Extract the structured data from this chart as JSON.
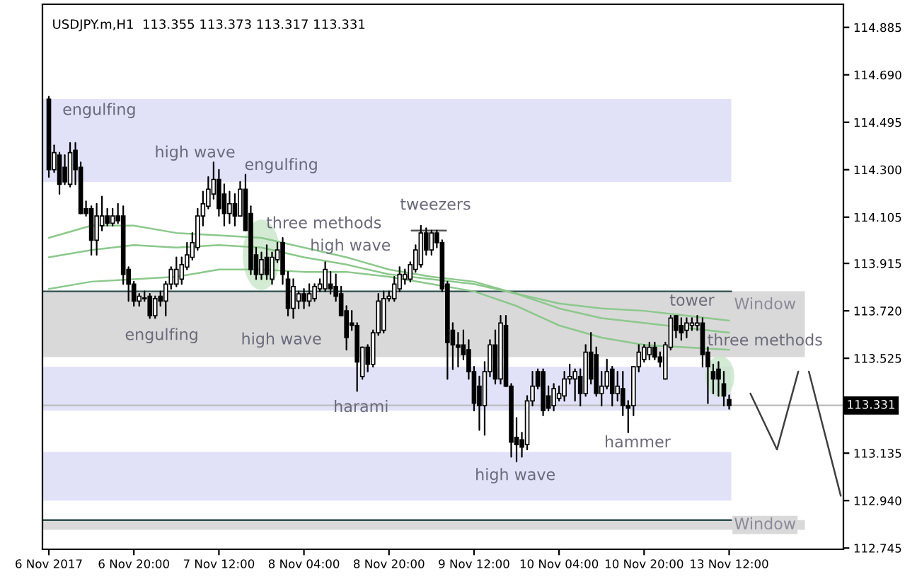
{
  "chart_data": {
    "type": "candlestick",
    "title": "USDJPY.m,H1  113.355 113.373 113.317 113.331",
    "categories": [
      "6 Nov 2017",
      null,
      null,
      null,
      null,
      null,
      null,
      null,
      null,
      null,
      null,
      null,
      null,
      null,
      null,
      null,
      "6 Nov 20:00",
      null,
      null,
      null,
      null,
      null,
      null,
      null,
      null,
      null,
      null,
      null,
      null,
      null,
      null,
      null,
      "7 Nov 12:00",
      null,
      null,
      null,
      null,
      null,
      null,
      null,
      null,
      null,
      null,
      null,
      null,
      null,
      null,
      null,
      "8 Nov 04:00",
      null,
      null,
      null,
      null,
      null,
      null,
      null,
      null,
      null,
      null,
      null,
      null,
      null,
      null,
      null,
      "8 Nov 20:00",
      null,
      null,
      null,
      null,
      null,
      null,
      null,
      null,
      null,
      null,
      null,
      null,
      null,
      null,
      null,
      "9 Nov 12:00",
      null,
      null,
      null,
      null,
      null,
      null,
      null,
      null,
      null,
      null,
      null,
      null,
      null,
      null,
      null,
      "10 Nov 04:00",
      null,
      null,
      null,
      null,
      null,
      null,
      null,
      null,
      null,
      null,
      null,
      null,
      null,
      null,
      null,
      "10 Nov 20:00",
      null,
      null,
      null,
      null,
      null,
      null,
      null,
      null,
      null,
      null,
      null,
      null,
      null,
      null,
      null,
      "13 Nov 12:00",
      null,
      null,
      null,
      null,
      null,
      null,
      null,
      null,
      null,
      null,
      null,
      null,
      null,
      null,
      null,
      null,
      null,
      null,
      null,
      null,
      null
    ],
    "color": "#000000",
    "ohlc": [
      [
        114.59,
        114.6,
        114.27,
        114.3
      ],
      [
        114.3,
        114.4,
        114.29,
        114.37
      ],
      [
        114.36,
        114.37,
        114.2,
        114.24
      ],
      [
        114.31,
        114.36,
        114.24,
        114.25
      ],
      [
        114.24,
        114.41,
        114.23,
        114.37
      ],
      [
        114.38,
        114.41,
        114.24,
        114.3
      ],
      [
        114.31,
        114.33,
        114.12,
        114.12
      ],
      [
        114.14,
        114.17,
        114.11,
        114.12
      ],
      [
        114.14,
        114.15,
        113.95,
        114.01
      ],
      [
        114.01,
        114.16,
        113.95,
        114.11
      ],
      [
        114.07,
        114.19,
        114.05,
        114.11
      ],
      [
        114.11,
        114.14,
        114.07,
        114.08
      ],
      [
        114.08,
        114.14,
        114.07,
        114.11
      ],
      [
        114.11,
        114.16,
        114.08,
        114.09
      ],
      [
        114.11,
        114.15,
        113.83,
        113.87
      ],
      [
        113.89,
        113.9,
        113.76,
        113.83
      ],
      [
        113.83,
        113.84,
        113.74,
        113.76
      ],
      [
        113.76,
        113.79,
        113.74,
        113.78
      ],
      [
        113.77,
        113.8,
        113.76,
        113.77
      ],
      [
        113.78,
        113.79,
        113.69,
        113.7
      ],
      [
        113.7,
        113.78,
        113.69,
        113.77
      ],
      [
        113.78,
        113.8,
        113.74,
        113.76
      ],
      [
        113.76,
        113.84,
        113.7,
        113.83
      ],
      [
        113.83,
        113.9,
        113.81,
        113.89
      ],
      [
        113.83,
        113.94,
        113.82,
        113.89
      ],
      [
        113.85,
        113.94,
        113.83,
        113.91
      ],
      [
        113.9,
        114.0,
        113.89,
        113.95
      ],
      [
        113.94,
        114.04,
        113.93,
        114.0
      ],
      [
        113.98,
        114.14,
        113.97,
        114.11
      ],
      [
        114.11,
        114.21,
        114.07,
        114.16
      ],
      [
        114.15,
        114.27,
        114.14,
        114.22
      ],
      [
        114.2,
        114.33,
        114.18,
        114.26
      ],
      [
        114.26,
        114.3,
        114.11,
        114.14
      ],
      [
        114.2,
        114.24,
        114.07,
        114.12
      ],
      [
        114.12,
        114.21,
        114.08,
        114.16
      ],
      [
        114.16,
        114.2,
        114.07,
        114.11
      ],
      [
        114.11,
        114.25,
        114.11,
        114.22
      ],
      [
        114.22,
        114.28,
        114.05,
        114.05
      ],
      [
        114.12,
        114.15,
        113.87,
        113.89
      ],
      [
        113.95,
        113.98,
        113.85,
        113.87
      ],
      [
        113.87,
        113.96,
        113.85,
        113.93
      ],
      [
        113.94,
        113.99,
        113.85,
        113.87
      ],
      [
        113.85,
        113.96,
        113.83,
        113.94
      ],
      [
        113.93,
        114.0,
        113.92,
        113.97
      ],
      [
        114.0,
        114.02,
        113.83,
        113.87
      ],
      [
        113.85,
        113.88,
        113.7,
        113.73
      ],
      [
        113.73,
        113.85,
        113.69,
        113.82
      ],
      [
        113.76,
        113.8,
        113.73,
        113.79
      ],
      [
        113.79,
        113.81,
        113.73,
        113.76
      ],
      [
        113.76,
        113.83,
        113.74,
        113.79
      ],
      [
        113.77,
        113.83,
        113.76,
        113.82
      ],
      [
        113.81,
        113.85,
        113.8,
        113.83
      ],
      [
        113.81,
        113.92,
        113.8,
        113.89
      ],
      [
        113.83,
        113.88,
        113.79,
        113.81
      ],
      [
        113.82,
        113.87,
        113.76,
        113.78
      ],
      [
        113.79,
        113.82,
        113.7,
        113.7
      ],
      [
        113.72,
        113.74,
        113.56,
        113.61
      ],
      [
        113.67,
        113.72,
        113.64,
        113.66
      ],
      [
        113.66,
        113.67,
        113.39,
        113.51
      ],
      [
        113.45,
        113.57,
        113.44,
        113.57
      ],
      [
        113.57,
        113.58,
        113.47,
        113.5
      ],
      [
        113.5,
        113.64,
        113.49,
        113.63
      ],
      [
        113.63,
        113.79,
        113.62,
        113.76
      ],
      [
        113.64,
        113.8,
        113.63,
        113.77
      ],
      [
        113.77,
        113.8,
        113.76,
        113.78
      ],
      [
        113.77,
        113.86,
        113.76,
        113.83
      ],
      [
        113.81,
        113.9,
        113.8,
        113.87
      ],
      [
        113.85,
        113.89,
        113.83,
        113.87
      ],
      [
        113.85,
        113.92,
        113.84,
        113.91
      ],
      [
        113.89,
        113.99,
        113.88,
        113.97
      ],
      [
        113.91,
        114.07,
        113.9,
        114.04
      ],
      [
        114.04,
        114.06,
        113.95,
        113.97
      ],
      [
        113.97,
        114.05,
        113.95,
        114.04
      ],
      [
        114.04,
        114.05,
        113.98,
        114.0
      ],
      [
        114.0,
        114.01,
        113.8,
        113.81
      ],
      [
        113.83,
        113.84,
        113.44,
        113.59
      ],
      [
        113.64,
        113.67,
        113.48,
        113.58
      ],
      [
        113.58,
        113.63,
        113.49,
        113.57
      ],
      [
        113.58,
        113.64,
        113.52,
        113.54
      ],
      [
        113.56,
        113.6,
        113.44,
        113.47
      ],
      [
        113.47,
        113.49,
        113.31,
        113.34
      ],
      [
        113.41,
        113.45,
        113.23,
        113.33
      ],
      [
        113.33,
        113.51,
        113.21,
        113.47
      ],
      [
        113.47,
        113.6,
        113.45,
        113.58
      ],
      [
        113.58,
        113.64,
        113.42,
        113.44
      ],
      [
        113.44,
        113.7,
        113.42,
        113.67
      ],
      [
        113.66,
        113.7,
        113.41,
        113.41
      ],
      [
        113.41,
        113.42,
        113.12,
        113.18
      ],
      [
        113.2,
        113.28,
        113.1,
        113.17
      ],
      [
        113.19,
        113.22,
        113.12,
        113.16
      ],
      [
        113.17,
        113.37,
        113.15,
        113.35
      ],
      [
        113.35,
        113.47,
        113.33,
        113.41
      ],
      [
        113.47,
        113.48,
        113.4,
        113.41
      ],
      [
        113.47,
        113.48,
        113.29,
        113.31
      ],
      [
        113.37,
        113.41,
        113.31,
        113.32
      ],
      [
        113.33,
        113.42,
        113.31,
        113.4
      ],
      [
        113.36,
        113.41,
        113.35,
        113.38
      ],
      [
        113.37,
        113.47,
        113.35,
        113.44
      ],
      [
        113.44,
        113.5,
        113.42,
        113.45
      ],
      [
        113.44,
        113.48,
        113.35,
        113.47
      ],
      [
        113.45,
        113.48,
        113.33,
        113.38
      ],
      [
        113.38,
        113.58,
        113.37,
        113.55
      ],
      [
        113.55,
        113.63,
        113.42,
        113.44
      ],
      [
        113.54,
        113.57,
        113.37,
        113.38
      ],
      [
        113.38,
        113.47,
        113.33,
        113.41
      ],
      [
        113.41,
        113.52,
        113.4,
        113.47
      ],
      [
        113.48,
        113.49,
        113.33,
        113.38
      ],
      [
        113.38,
        113.47,
        113.35,
        113.41
      ],
      [
        113.4,
        113.47,
        113.29,
        113.33
      ],
      [
        113.33,
        113.35,
        113.22,
        113.32
      ],
      [
        113.33,
        113.49,
        113.29,
        113.49
      ],
      [
        113.49,
        113.58,
        113.47,
        113.55
      ],
      [
        113.52,
        113.58,
        113.51,
        113.57
      ],
      [
        113.54,
        113.59,
        113.52,
        113.57
      ],
      [
        113.57,
        113.59,
        113.52,
        113.53
      ],
      [
        113.53,
        113.55,
        113.49,
        113.51
      ],
      [
        113.44,
        113.59,
        113.44,
        113.58
      ],
      [
        113.57,
        113.7,
        113.56,
        113.69
      ],
      [
        113.7,
        113.7,
        113.61,
        113.64
      ],
      [
        113.66,
        113.69,
        113.6,
        113.63
      ],
      [
        113.64,
        113.69,
        113.61,
        113.67
      ],
      [
        113.66,
        113.69,
        113.64,
        113.67
      ],
      [
        113.66,
        113.7,
        113.64,
        113.67
      ],
      [
        113.67,
        113.69,
        113.49,
        113.54
      ],
      [
        113.55,
        113.57,
        113.34,
        113.49
      ],
      [
        113.47,
        113.5,
        113.38,
        113.44
      ],
      [
        113.48,
        113.51,
        113.37,
        113.44
      ],
      [
        113.42,
        113.47,
        113.33,
        113.37
      ],
      [
        113.355,
        113.373,
        113.317,
        113.331
      ],
      null,
      null,
      null,
      null,
      null,
      null,
      null,
      null,
      null,
      null,
      null,
      null,
      null,
      null,
      null,
      null,
      null,
      null,
      null,
      null,
      null
    ],
    "series": [
      {
        "type": "line",
        "color": "#8cc88c",
        "values": [
          114.02,
          null,
          null,
          null,
          null,
          null,
          null,
          null,
          114.07,
          null,
          null,
          null,
          null,
          null,
          null,
          null,
          114.07,
          null,
          null,
          null,
          null,
          null,
          null,
          null,
          114.04,
          null,
          null,
          null,
          null,
          null,
          null,
          null,
          114.03,
          null,
          null,
          null,
          null,
          null,
          null,
          null,
          114.02,
          null,
          null,
          null,
          null,
          null,
          null,
          null,
          113.98,
          null,
          null,
          null,
          null,
          null,
          null,
          null,
          113.94,
          null,
          null,
          null,
          null,
          null,
          null,
          null,
          113.89,
          null,
          null,
          null,
          null,
          null,
          null,
          null,
          113.86,
          null,
          null,
          null,
          null,
          null,
          null,
          null,
          113.84,
          null,
          null,
          null,
          null,
          null,
          null,
          null,
          113.79,
          null,
          null,
          null,
          null,
          null,
          null,
          null,
          113.75,
          null,
          null,
          null,
          null,
          null,
          null,
          null,
          113.73,
          null,
          null,
          null,
          null,
          null,
          null,
          null,
          113.72,
          null,
          null,
          null,
          null,
          null,
          null,
          null,
          113.7,
          null,
          null,
          null,
          null,
          null,
          null,
          null,
          113.68,
          null,
          null,
          null,
          null,
          null,
          null,
          null,
          null,
          null,
          null,
          null,
          null,
          null,
          null,
          null,
          null,
          null,
          null,
          null,
          null,
          null
        ]
      },
      {
        "type": "line",
        "color": "#8cc88c",
        "values": [
          113.94,
          null,
          null,
          null,
          null,
          null,
          null,
          null,
          113.97,
          null,
          null,
          null,
          null,
          null,
          null,
          null,
          113.99,
          null,
          null,
          null,
          null,
          null,
          null,
          null,
          113.98,
          null,
          null,
          null,
          null,
          null,
          null,
          null,
          113.99,
          null,
          null,
          null,
          null,
          null,
          null,
          null,
          113.98,
          null,
          null,
          null,
          null,
          null,
          null,
          null,
          113.94,
          null,
          null,
          null,
          null,
          null,
          null,
          null,
          113.91,
          null,
          null,
          null,
          null,
          null,
          null,
          null,
          113.87,
          null,
          null,
          null,
          null,
          null,
          null,
          null,
          113.85,
          null,
          null,
          null,
          null,
          null,
          null,
          null,
          113.83,
          null,
          null,
          null,
          null,
          null,
          null,
          null,
          113.79,
          null,
          null,
          null,
          null,
          null,
          null,
          null,
          113.73,
          null,
          null,
          null,
          null,
          null,
          null,
          null,
          113.69,
          null,
          null,
          null,
          null,
          null,
          null,
          null,
          113.67,
          null,
          null,
          null,
          null,
          null,
          null,
          null,
          113.65,
          null,
          null,
          null,
          null,
          null,
          null,
          null,
          113.63,
          null,
          null,
          null,
          null,
          null,
          null,
          null,
          null,
          null,
          null,
          null,
          null,
          null,
          null,
          null,
          null,
          null,
          null,
          null,
          null,
          null
        ]
      },
      {
        "type": "line",
        "color": "#8cc88c",
        "values": [
          113.81,
          null,
          null,
          null,
          null,
          null,
          null,
          null,
          113.84,
          null,
          null,
          null,
          null,
          null,
          null,
          null,
          113.85,
          null,
          null,
          null,
          null,
          null,
          null,
          null,
          113.86,
          null,
          null,
          null,
          null,
          null,
          null,
          null,
          113.89,
          null,
          null,
          null,
          null,
          null,
          null,
          null,
          113.89,
          null,
          null,
          null,
          null,
          null,
          null,
          null,
          113.88,
          null,
          null,
          null,
          null,
          null,
          null,
          null,
          113.88,
          null,
          null,
          null,
          null,
          null,
          null,
          null,
          113.86,
          null,
          null,
          null,
          null,
          null,
          null,
          null,
          113.83,
          null,
          null,
          null,
          null,
          null,
          null,
          null,
          113.8,
          null,
          null,
          null,
          null,
          null,
          null,
          null,
          113.74,
          null,
          null,
          null,
          null,
          null,
          null,
          null,
          113.66,
          null,
          null,
          null,
          null,
          null,
          null,
          null,
          113.61,
          null,
          null,
          null,
          null,
          null,
          null,
          null,
          113.58,
          null,
          null,
          null,
          null,
          null,
          null,
          null,
          113.57,
          null,
          null,
          null,
          null,
          null,
          null,
          null,
          113.56,
          null,
          null,
          null,
          null,
          null,
          null,
          null,
          null,
          null,
          null,
          null,
          null,
          null,
          null,
          null,
          null,
          null,
          null,
          null,
          null,
          null
        ]
      },
      {
        "type": "line",
        "color": "#404040",
        "values": [
          null,
          null,
          null,
          null,
          null,
          null,
          null,
          null,
          null,
          null,
          null,
          null,
          null,
          null,
          null,
          null,
          null,
          null,
          null,
          null,
          null,
          null,
          null,
          null,
          null,
          null,
          null,
          null,
          null,
          null,
          null,
          null,
          null,
          null,
          null,
          null,
          null,
          null,
          null,
          null,
          null,
          null,
          null,
          null,
          null,
          null,
          null,
          null,
          null,
          null,
          null,
          null,
          null,
          null,
          null,
          null,
          null,
          null,
          null,
          null,
          null,
          null,
          null,
          null,
          null,
          null,
          null,
          null,
          null,
          null,
          null,
          null,
          null,
          null,
          null,
          null,
          null,
          null,
          null,
          null,
          null,
          null,
          null,
          null,
          null,
          null,
          null,
          null,
          null,
          null,
          null,
          null,
          null,
          null,
          null,
          null,
          null,
          null,
          null,
          null,
          null,
          null,
          null,
          null,
          null,
          null,
          null,
          null,
          null,
          null,
          null,
          null,
          null,
          null,
          null,
          null,
          null,
          null,
          null,
          null,
          null,
          null,
          null,
          null,
          null,
          null,
          null,
          null,
          null,
          null,
          null,
          null,
          113.38,
          null,
          null,
          null,
          null,
          113.15,
          null,
          null,
          null,
          113.47,
          null,
          null,
          null,
          null,
          null,
          null,
          null,
          null
        ]
      },
      {
        "type": "line",
        "color": "#404040",
        "values": [
          null,
          null,
          null,
          null,
          null,
          null,
          null,
          null,
          null,
          null,
          null,
          null,
          null,
          null,
          null,
          null,
          null,
          null,
          null,
          null,
          null,
          null,
          null,
          null,
          null,
          null,
          null,
          null,
          null,
          null,
          null,
          null,
          null,
          null,
          null,
          null,
          null,
          null,
          null,
          null,
          null,
          null,
          null,
          null,
          null,
          null,
          null,
          null,
          null,
          null,
          null,
          null,
          null,
          null,
          null,
          null,
          null,
          null,
          null,
          null,
          null,
          null,
          null,
          null,
          null,
          null,
          null,
          null,
          null,
          null,
          null,
          null,
          null,
          null,
          null,
          null,
          null,
          null,
          null,
          null,
          null,
          null,
          null,
          null,
          null,
          null,
          null,
          null,
          null,
          null,
          null,
          null,
          null,
          null,
          null,
          null,
          null,
          null,
          null,
          null,
          null,
          null,
          null,
          null,
          null,
          null,
          null,
          null,
          null,
          null,
          null,
          null,
          null,
          null,
          null,
          null,
          null,
          null,
          null,
          null,
          null,
          null,
          null,
          null,
          null,
          null,
          null,
          null,
          null,
          null,
          null,
          null,
          null,
          null,
          null,
          null,
          null,
          null,
          null,
          null,
          null,
          null,
          null,
          113.47,
          null,
          null,
          null,
          null,
          null,
          112.96
        ]
      }
    ],
    "ylim": [
      112.74,
      114.98
    ],
    "yticks": [
      114.885,
      {
        "value": 114.69,
        "label": "114.690"
      },
      114.495,
      {
        "value": 114.3,
        "label": "114.300"
      },
      114.105,
      113.915,
      {
        "value": 113.72,
        "label": "113.720"
      },
      113.525,
      113.135,
      {
        "value": 112.94,
        "label": "112.940"
      },
      112.745
    ],
    "bands": [
      {
        "axis": "y",
        "from": 114.25,
        "to": 114.59,
        "color": "#e1e1f8"
      },
      {
        "axis": "y",
        "from": 113.53,
        "to": 113.8,
        "color": "#d9d9d9",
        "label": "Window"
      },
      {
        "axis": "y",
        "from": 113.31,
        "to": 113.49,
        "color": "#e1e1f8"
      },
      {
        "axis": "y",
        "from": 112.94,
        "to": 113.14,
        "color": "#e1e1f8"
      },
      {
        "axis": "y",
        "from": 112.82,
        "to": 112.86,
        "color": "#d9d9d9",
        "label": "Window"
      }
    ],
    "ref_lines": [
      {
        "axis": "y",
        "value": 113.331,
        "label": "113.331",
        "color": "#c0c0c0"
      },
      {
        "axis": "y",
        "value": 113.8,
        "color": "#2f4f4f"
      },
      {
        "axis": "y",
        "value": 112.86,
        "color": "#2f4f4f"
      }
    ],
    "annotations": [
      "engulfing",
      "high wave",
      "engulfing",
      "three methods",
      "tweezers",
      "high wave",
      "engulfing",
      "high wave",
      "harami",
      "high wave",
      "hammer",
      "tower",
      "three methods"
    ]
  }
}
